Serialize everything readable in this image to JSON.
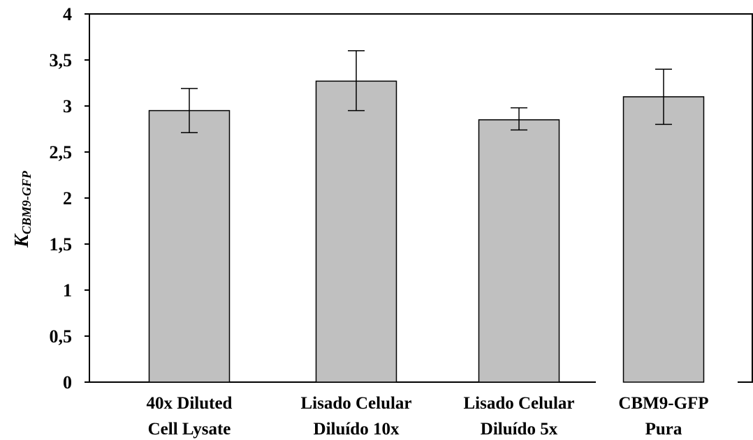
{
  "chart_data": {
    "type": "bar",
    "categories": [
      [
        "40x Diluted",
        "Cell Lysate"
      ],
      [
        "Lisado Celular",
        "Diluído 10x"
      ],
      [
        "Lisado Celular",
        "Diluído 5x"
      ],
      [
        "CBM9-GFP",
        "Pura"
      ]
    ],
    "values": [
      2.95,
      3.27,
      2.85,
      3.1
    ],
    "errors": [
      [
        2.71,
        3.19
      ],
      [
        2.95,
        3.6
      ],
      [
        2.74,
        2.98
      ],
      [
        2.8,
        3.4
      ]
    ],
    "ylabel": {
      "main": "K",
      "sub": "CBM9-GFP"
    },
    "ylim": [
      0,
      4
    ],
    "yticks": [
      0,
      0.5,
      1,
      1.5,
      2,
      2.5,
      3,
      3.5,
      4
    ],
    "ytick_labels": [
      "0",
      "0,5",
      "1",
      "1,5",
      "2",
      "2,5",
      "3",
      "3,5",
      "4"
    ],
    "bar_color": "#c0c0c0",
    "grid": false,
    "legend": "none"
  }
}
